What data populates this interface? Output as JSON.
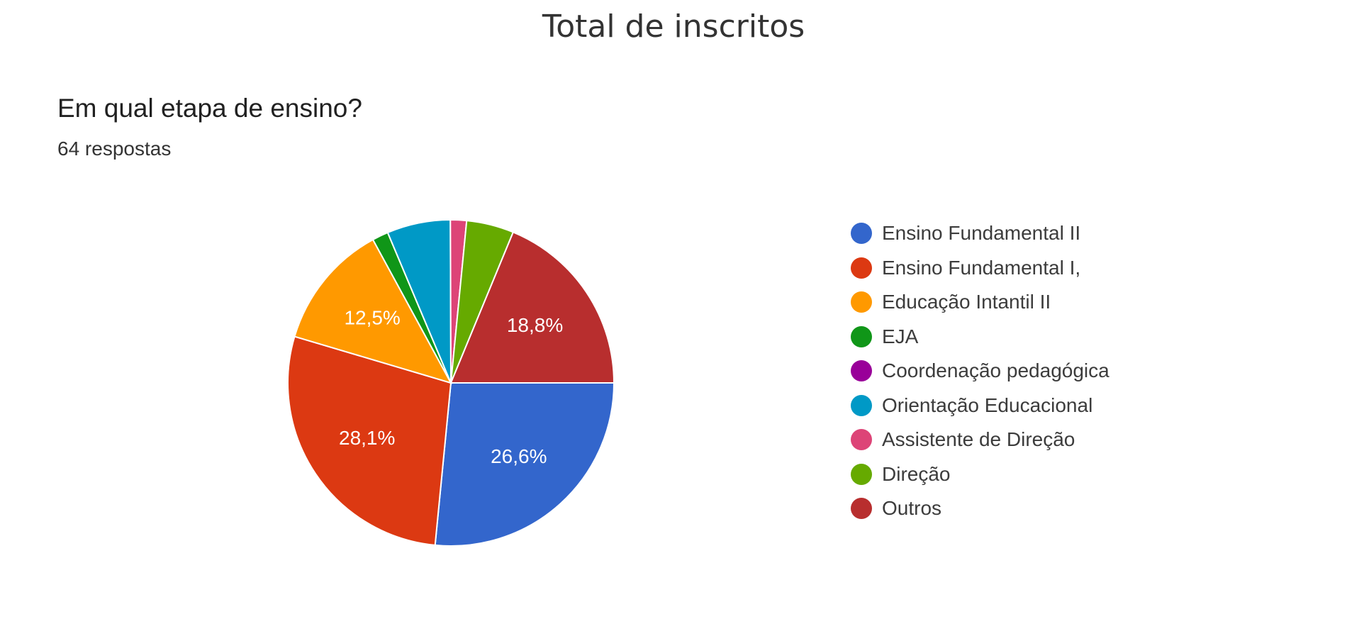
{
  "title": "Total de inscritos",
  "chart_data": {
    "type": "pie",
    "title": "Em qual etapa de ensino?",
    "subtitle": "64 respostas",
    "legend_position": "right",
    "slices": [
      {
        "label": "Ensino Fundamental II",
        "value": 26.6,
        "value_label": "26,6%",
        "color": "#3366cc"
      },
      {
        "label": "Ensino Fundamental I,",
        "value": 28.1,
        "value_label": "28,1%",
        "color": "#dc3912"
      },
      {
        "label": "Educação Intantil II",
        "value": 12.5,
        "value_label": "12,5%",
        "color": "#ff9900"
      },
      {
        "label": "EJA",
        "value": 1.6,
        "value_label": "",
        "color": "#109618"
      },
      {
        "label": "Coordenação pedagógica",
        "value": 0,
        "value_label": "",
        "color": "#990099"
      },
      {
        "label": "Orientação Educacional",
        "value": 6.3,
        "value_label": "",
        "color": "#0099c6"
      },
      {
        "label": "Assistente de Direção",
        "value": 1.6,
        "value_label": "",
        "color": "#dd4477"
      },
      {
        "label": "Direção",
        "value": 4.7,
        "value_label": "",
        "color": "#66aa00"
      },
      {
        "label": "Outros",
        "value": 18.8,
        "value_label": "18,8%",
        "color": "#b82e2e"
      }
    ]
  }
}
